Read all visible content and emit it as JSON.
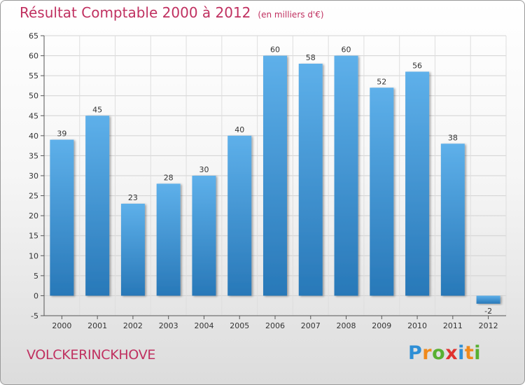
{
  "header": {
    "title": "Résultat Comptable 2000 à 2012",
    "unit": "(en milliers d'€)"
  },
  "footer": {
    "commune": "VOLCKERINCKHOVE",
    "logo_letters": [
      {
        "char": "P",
        "color": "#2e8fd6"
      },
      {
        "char": "r",
        "color": "#f08a1c"
      },
      {
        "char": "o",
        "color": "#58b031"
      },
      {
        "char": "x",
        "color": "#e0322f"
      },
      {
        "char": "i",
        "color": "#2e8fd6"
      },
      {
        "char": "t",
        "color": "#f08a1c"
      },
      {
        "char": "i",
        "color": "#58b031"
      }
    ]
  },
  "colors": {
    "bar_top": "#5eb0ea",
    "bar_bottom": "#2878b8",
    "title": "#c03060"
  },
  "chart_data": {
    "type": "bar",
    "title": "Résultat Comptable 2000 à 2012",
    "xlabel": "",
    "ylabel": "",
    "categories": [
      "2000",
      "2001",
      "2002",
      "2003",
      "2004",
      "2005",
      "2006",
      "2007",
      "2008",
      "2009",
      "2010",
      "2011",
      "2012"
    ],
    "values": [
      39,
      45,
      23,
      28,
      30,
      40,
      60,
      58,
      60,
      52,
      56,
      38,
      -2
    ],
    "labels": [
      "39",
      "45",
      "23",
      "28",
      "30",
      "40",
      "60",
      "58",
      "60",
      "52",
      "56",
      "38",
      "-2"
    ],
    "yticks": [
      -5,
      0,
      5,
      10,
      15,
      20,
      25,
      30,
      35,
      40,
      45,
      50,
      55,
      60,
      65
    ],
    "ylim": [
      -5,
      65
    ],
    "grid": true
  }
}
